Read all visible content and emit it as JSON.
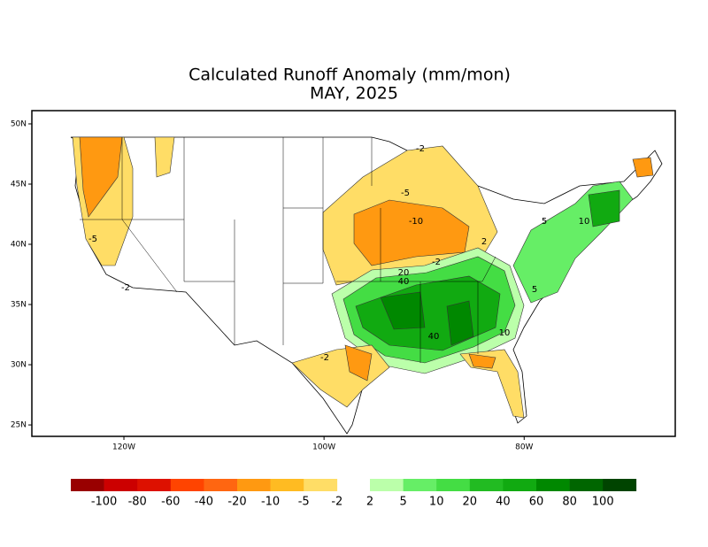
{
  "map": {
    "title": "Calculated Runoff Anomaly (mm/mon)",
    "subtitle": "MAY, 2025",
    "xlim": [
      -129.2,
      -64.9
    ],
    "ylim": [
      24.05,
      51.1
    ],
    "xticks": [
      {
        "value": -120,
        "label": "120W"
      },
      {
        "value": -100,
        "label": "100W"
      },
      {
        "value": -80,
        "label": "80W"
      }
    ],
    "yticks": [
      {
        "value": 25,
        "label": "25N"
      },
      {
        "value": 30,
        "label": "30N"
      },
      {
        "value": 35,
        "label": "35N"
      },
      {
        "value": 40,
        "label": "40N"
      },
      {
        "value": 45,
        "label": "45N"
      },
      {
        "value": 50,
        "label": "50N"
      }
    ],
    "annotations": [
      "-5",
      "-2",
      "-2",
      "-5",
      "-10",
      "2",
      "-2",
      "20",
      "40",
      "5",
      "40",
      "10",
      "-2",
      "5",
      "10"
    ],
    "legend": {
      "colors": [
        "#990000",
        "#cc0000",
        "#dd1100",
        "#ff4400",
        "#ff6611",
        "#ff9911",
        "#ffbb22",
        "#ffdd66",
        "#bbffaa",
        "#66ee66",
        "#44dd44",
        "#22bb22",
        "#11aa11",
        "#008800",
        "#006600",
        "#004400"
      ],
      "labels": [
        -100,
        -80,
        -60,
        -40,
        -20,
        -10,
        -5,
        -2,
        2,
        5,
        10,
        20,
        40,
        60,
        80,
        100
      ]
    }
  }
}
